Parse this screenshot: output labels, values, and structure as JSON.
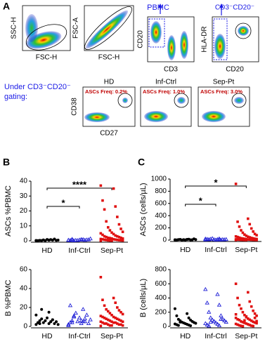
{
  "panel_a": {
    "label": "A",
    "row1": [
      {
        "y_label": "SSC-H",
        "x_label": "FSC-H"
      },
      {
        "y_label": "FSC-A",
        "x_label": "FSC-H"
      },
      {
        "y_label": "CD20",
        "x_label": "CD3",
        "gate_label": "PBMC"
      },
      {
        "y_label": "HLA-DR",
        "x_label": "CD20",
        "gate_label": "CD3⁻CD20⁻"
      }
    ],
    "gating_note": [
      "Under CD3⁻CD20⁻",
      "gating:"
    ],
    "row2": {
      "y_label": "CD38",
      "x_label": "CD27",
      "plots": [
        {
          "title": "HD",
          "annotation": "ASCs Freq: 0.2%"
        },
        {
          "title": "Inf-Ctrl",
          "annotation": "ASCs Freq: 1.0%"
        },
        {
          "title": "Sep-Pt",
          "annotation": "ASCs Freq: 3.0%"
        }
      ]
    }
  },
  "panel_labels": {
    "b": "B",
    "c": "C"
  },
  "chart_data": [
    {
      "type": "dot",
      "y_label": "ASCs %PBMC",
      "ylim": [
        0,
        40
      ],
      "yticks": [
        0,
        10,
        20,
        30,
        40
      ],
      "groups": [
        {
          "name": "HD",
          "color": "#000000",
          "marker": "circle",
          "values": [
            0.2,
            0.5,
            0.1,
            0.8,
            0.3,
            0.4,
            0.2,
            1.2,
            0.6,
            0.3,
            0.1,
            0.5,
            0.9,
            0.2,
            0.4
          ]
        },
        {
          "name": "Inf-Ctrl",
          "color": "#1f1fd6",
          "marker": "triangle",
          "values": [
            0.3,
            0.5,
            0.2,
            0.8,
            1.0,
            0.4,
            0.1,
            0.6,
            0.3,
            0.7,
            0.2,
            1.3,
            0.5,
            0.4,
            0.9,
            0.2,
            0.6,
            0.3
          ]
        },
        {
          "name": "Sep-Pt",
          "color": "#e01010",
          "marker": "square",
          "values": [
            37,
            35,
            27,
            23,
            21,
            16,
            13,
            11,
            9,
            8,
            7,
            6,
            5.5,
            5,
            4.5,
            4,
            3.5,
            3,
            3,
            2.5,
            2.5,
            2,
            2,
            1.8,
            1.5,
            1.5,
            1.2,
            1,
            1,
            0.8,
            0.7,
            0.6,
            0.5,
            0.4,
            0.3,
            0.3,
            0.2,
            0.2,
            0.1,
            0.1
          ]
        }
      ],
      "brackets": [
        {
          "label": "*",
          "groups": [
            "HD",
            "Inf-Ctrl"
          ]
        },
        {
          "label": "****",
          "groups": [
            "HD",
            "Sep-Pt"
          ]
        }
      ]
    },
    {
      "type": "dot",
      "y_label": "ASCs (cells/µL)",
      "ylim": [
        0,
        1000
      ],
      "yticks": [
        0,
        200,
        400,
        600,
        800,
        1000
      ],
      "groups": [
        {
          "name": "HD",
          "color": "#000000",
          "marker": "circle",
          "values": [
            5,
            10,
            3,
            15,
            8,
            4,
            12,
            6,
            2,
            20,
            7,
            9,
            3,
            5,
            11
          ]
        },
        {
          "name": "Inf-Ctrl",
          "color": "#1f1fd6",
          "marker": "triangle",
          "values": [
            4,
            8,
            12,
            20,
            6,
            3,
            15,
            9,
            25,
            5,
            7,
            10,
            2,
            18,
            6,
            11,
            4,
            8
          ]
        },
        {
          "name": "Sep-Pt",
          "color": "#e01010",
          "marker": "square",
          "values": [
            920,
            350,
            300,
            260,
            220,
            190,
            160,
            140,
            120,
            100,
            90,
            80,
            70,
            60,
            55,
            50,
            45,
            40,
            35,
            30,
            28,
            25,
            22,
            20,
            18,
            15,
            12,
            10,
            9,
            8,
            7,
            6,
            5,
            4,
            3,
            3,
            2,
            2,
            1,
            1
          ]
        }
      ],
      "brackets": [
        {
          "label": "*",
          "groups": [
            "HD",
            "Inf-Ctrl"
          ]
        },
        {
          "label": "*",
          "groups": [
            "HD",
            "Sep-Pt"
          ]
        }
      ]
    },
    {
      "type": "dot",
      "y_label": "B %PBMC",
      "ylim": [
        0,
        60
      ],
      "yticks": [
        0,
        20,
        40,
        60
      ],
      "groups": [
        {
          "name": "HD",
          "color": "#000000",
          "marker": "circle",
          "values": [
            2,
            3,
            4,
            5,
            6,
            7,
            8,
            3,
            4,
            5,
            6,
            2,
            9,
            12,
            15,
            4,
            5,
            3,
            7,
            18
          ]
        },
        {
          "name": "Inf-Ctrl",
          "color": "#1f1fd6",
          "marker": "triangle",
          "values": [
            1,
            3,
            4,
            5,
            6,
            8,
            10,
            12,
            14,
            3,
            5,
            7,
            9,
            2,
            6,
            22,
            18,
            4,
            5,
            11
          ]
        },
        {
          "name": "Sep-Pt",
          "color": "#e01010",
          "marker": "square",
          "values": [
            52,
            30,
            28,
            25,
            22,
            20,
            18,
            17,
            16,
            15,
            14,
            13,
            12,
            11,
            10,
            10,
            9,
            9,
            8,
            8,
            7,
            7,
            6,
            6,
            5,
            5,
            5,
            4,
            4,
            4,
            3,
            3,
            3,
            2,
            2,
            2,
            1,
            1,
            1,
            0.5
          ]
        }
      ],
      "brackets": []
    },
    {
      "type": "dot",
      "y_label": "B (cells/µL)",
      "ylim": [
        0,
        800
      ],
      "yticks": [
        0,
        200,
        400,
        600,
        800
      ],
      "groups": [
        {
          "name": "HD",
          "color": "#000000",
          "marker": "circle",
          "values": [
            250,
            180,
            150,
            120,
            100,
            90,
            80,
            70,
            60,
            55,
            50,
            45,
            40,
            35,
            30,
            25,
            20,
            15,
            10,
            60
          ]
        },
        {
          "name": "Inf-Ctrl",
          "color": "#1f1fd6",
          "marker": "triangle",
          "values": [
            520,
            450,
            330,
            300,
            200,
            150,
            120,
            100,
            90,
            80,
            70,
            60,
            50,
            40,
            30,
            20,
            10,
            5,
            100,
            60
          ]
        },
        {
          "name": "Sep-Pt",
          "color": "#e01010",
          "marker": "square",
          "values": [
            600,
            480,
            400,
            350,
            300,
            280,
            250,
            220,
            200,
            180,
            160,
            150,
            140,
            120,
            110,
            100,
            95,
            90,
            80,
            70,
            65,
            60,
            55,
            50,
            45,
            40,
            35,
            30,
            25,
            20,
            15,
            10,
            8,
            5,
            3,
            120,
            85,
            75,
            130,
            170
          ]
        }
      ],
      "brackets": []
    }
  ]
}
